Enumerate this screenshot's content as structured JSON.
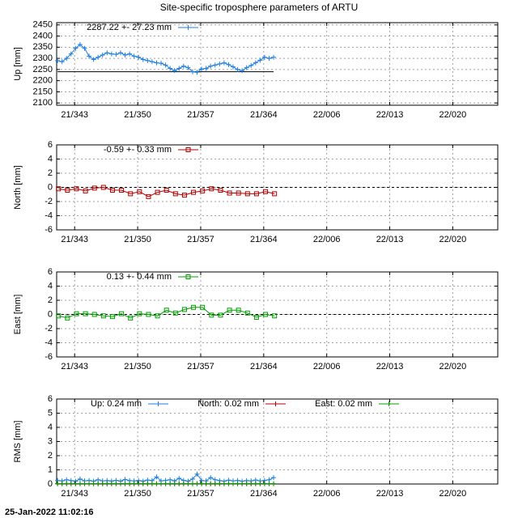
{
  "title": "Site-specific troposphere parameters of ARTU",
  "footer": "25-Jan-2022 11:02:16",
  "chart_data": [
    {
      "type": "line",
      "ylabel": "Up [mm]",
      "x": [
        341.1,
        341.6,
        342.1,
        342.6,
        343.1,
        343.6,
        344.1,
        344.6,
        345.1,
        345.6,
        346.1,
        346.6,
        347.1,
        347.6,
        348.1,
        348.6,
        349.1,
        349.6,
        350.1,
        350.6,
        351.1,
        351.6,
        352.1,
        352.6,
        353.1,
        353.6,
        354.1,
        354.6,
        355.1,
        355.6,
        356.1,
        356.6,
        357.1,
        357.6,
        358.1,
        358.6,
        359.1,
        359.6,
        360.1,
        360.6,
        361.1,
        361.6,
        362.1,
        362.6,
        363.1,
        363.6,
        364.1,
        364.6,
        365.1
      ],
      "series": [
        {
          "name": "2287.22 +-  27.23 mm",
          "color": "#1e7fe0",
          "marker": "plus",
          "values": [
            2290,
            2285,
            2300,
            2320,
            2345,
            2362,
            2345,
            2310,
            2295,
            2305,
            2315,
            2325,
            2320,
            2318,
            2325,
            2315,
            2320,
            2310,
            2305,
            2295,
            2290,
            2285,
            2280,
            2278,
            2270,
            2255,
            2245,
            2255,
            2265,
            2258,
            2240,
            2238,
            2252,
            2255,
            2265,
            2270,
            2275,
            2280,
            2272,
            2262,
            2250,
            2245,
            2258,
            2268,
            2280,
            2292,
            2305,
            2300,
            2305
          ]
        }
      ],
      "reference_line": 2240,
      "xlim": [
        341,
        390
      ],
      "xticks": [
        {
          "value": 343,
          "label": "21/343"
        },
        {
          "value": 350,
          "label": "21/350"
        },
        {
          "value": 357,
          "label": "21/357"
        },
        {
          "value": 364,
          "label": "21/364"
        },
        {
          "value": 371,
          "label": "22/006"
        },
        {
          "value": 378,
          "label": "22/013"
        },
        {
          "value": 385,
          "label": "22/020"
        }
      ],
      "ylim": [
        2090,
        2460
      ],
      "yticks": [
        2100,
        2150,
        2200,
        2250,
        2300,
        2350,
        2400,
        2450
      ],
      "grid": true
    },
    {
      "type": "line",
      "ylabel": "North [mm]",
      "x": [
        341.2,
        342.2,
        343.2,
        344.2,
        345.2,
        346.2,
        347.2,
        348.2,
        349.2,
        350.2,
        351.2,
        352.2,
        353.2,
        354.2,
        355.2,
        356.2,
        357.2,
        358.2,
        359.2,
        360.2,
        361.2,
        362.2,
        363.2,
        364.2,
        365.2
      ],
      "series": [
        {
          "name": "-0.59 +-   0.33 mm",
          "color": "#b00000",
          "marker": "square",
          "values": [
            -0.2,
            -0.4,
            -0.2,
            -0.5,
            -0.1,
            0.0,
            -0.4,
            -0.4,
            -0.9,
            -0.6,
            -1.3,
            -0.7,
            -0.4,
            -0.9,
            -1.1,
            -0.7,
            -0.5,
            -0.2,
            -0.4,
            -0.8,
            -0.8,
            -0.9,
            -0.9,
            -0.6,
            -0.9
          ]
        }
      ],
      "reference_line": 0,
      "xlim": [
        341,
        390
      ],
      "xticks": [
        {
          "value": 343,
          "label": "21/343"
        },
        {
          "value": 350,
          "label": "21/350"
        },
        {
          "value": 357,
          "label": "21/357"
        },
        {
          "value": 364,
          "label": "21/364"
        },
        {
          "value": 371,
          "label": "22/006"
        },
        {
          "value": 378,
          "label": "22/013"
        },
        {
          "value": 385,
          "label": "22/020"
        }
      ],
      "ylim": [
        -6,
        6
      ],
      "yticks": [
        -6,
        -4,
        -2,
        0,
        2,
        4,
        6
      ],
      "grid": true
    },
    {
      "type": "line",
      "ylabel": "East [mm]",
      "x": [
        341.2,
        342.2,
        343.2,
        344.2,
        345.2,
        346.2,
        347.2,
        348.2,
        349.2,
        350.2,
        351.2,
        352.2,
        353.2,
        354.2,
        355.2,
        356.2,
        357.2,
        358.2,
        359.2,
        360.2,
        361.2,
        362.2,
        363.2,
        364.2,
        365.2
      ],
      "series": [
        {
          "name": "0.13 +-   0.44 mm",
          "color": "#00a000",
          "marker": "square",
          "values": [
            -0.2,
            -0.5,
            0.1,
            0.1,
            0.0,
            -0.2,
            -0.3,
            0.1,
            -0.5,
            0.1,
            0.0,
            -0.2,
            0.6,
            0.2,
            0.7,
            1.0,
            1.0,
            -0.1,
            -0.1,
            0.6,
            0.6,
            0.2,
            -0.4,
            0.0,
            -0.2
          ]
        }
      ],
      "reference_line": 0,
      "xlim": [
        341,
        390
      ],
      "xticks": [
        {
          "value": 343,
          "label": "21/343"
        },
        {
          "value": 350,
          "label": "21/350"
        },
        {
          "value": 357,
          "label": "21/357"
        },
        {
          "value": 364,
          "label": "21/364"
        },
        {
          "value": 371,
          "label": "22/006"
        },
        {
          "value": 378,
          "label": "22/013"
        },
        {
          "value": 385,
          "label": "22/020"
        }
      ],
      "ylim": [
        -6,
        6
      ],
      "yticks": [
        -6,
        -4,
        -2,
        0,
        2,
        4,
        6
      ],
      "grid": true
    },
    {
      "type": "line",
      "ylabel": "RMS [mm]",
      "x": [
        341.1,
        341.6,
        342.1,
        342.6,
        343.1,
        343.6,
        344.1,
        344.6,
        345.1,
        345.6,
        346.1,
        346.6,
        347.1,
        347.6,
        348.1,
        348.6,
        349.1,
        349.6,
        350.1,
        350.6,
        351.1,
        351.6,
        352.1,
        352.6,
        353.1,
        353.6,
        354.1,
        354.6,
        355.1,
        355.6,
        356.1,
        356.6,
        357.1,
        357.6,
        358.1,
        358.6,
        359.1,
        359.6,
        360.1,
        360.6,
        361.1,
        361.6,
        362.1,
        362.6,
        363.1,
        363.6,
        364.1,
        364.6,
        365.1
      ],
      "series": [
        {
          "name": "Up:    0.24 mm",
          "color": "#1e7fe0",
          "marker": "plus",
          "values": [
            0.25,
            0.22,
            0.3,
            0.24,
            0.2,
            0.35,
            0.22,
            0.25,
            0.2,
            0.3,
            0.22,
            0.24,
            0.21,
            0.26,
            0.2,
            0.32,
            0.24,
            0.22,
            0.25,
            0.2,
            0.28,
            0.24,
            0.5,
            0.22,
            0.25,
            0.3,
            0.22,
            0.4,
            0.26,
            0.2,
            0.35,
            0.7,
            0.25,
            0.22,
            0.45,
            0.3,
            0.24,
            0.2,
            0.27,
            0.22,
            0.25,
            0.2,
            0.24,
            0.22,
            0.28,
            0.22,
            0.25,
            0.3,
            0.45
          ]
        },
        {
          "name": "North:  0.02 mm",
          "color": "#b00000",
          "marker": "plus",
          "values": [
            0.02,
            0.02,
            0.02,
            0.02,
            0.02,
            0.02,
            0.02,
            0.02,
            0.02,
            0.02,
            0.02,
            0.02,
            0.02,
            0.02,
            0.02,
            0.02,
            0.02,
            0.02,
            0.02,
            0.02,
            0.02,
            0.02,
            0.02,
            0.02,
            0.02,
            0.02,
            0.02,
            0.02,
            0.02,
            0.02,
            0.02,
            0.02,
            0.02,
            0.02,
            0.02,
            0.02,
            0.02,
            0.02,
            0.02,
            0.02,
            0.02,
            0.02,
            0.02,
            0.02,
            0.02,
            0.02,
            0.02,
            0.02,
            0.02
          ]
        },
        {
          "name": "East:  0.02 mm",
          "color": "#00a000",
          "marker": "plus",
          "values": [
            0.02,
            0.02,
            0.02,
            0.02,
            0.02,
            0.02,
            0.02,
            0.02,
            0.02,
            0.02,
            0.02,
            0.02,
            0.02,
            0.02,
            0.02,
            0.02,
            0.02,
            0.02,
            0.02,
            0.02,
            0.02,
            0.02,
            0.02,
            0.02,
            0.02,
            0.02,
            0.02,
            0.02,
            0.02,
            0.02,
            0.02,
            0.02,
            0.02,
            0.02,
            0.02,
            0.02,
            0.02,
            0.02,
            0.02,
            0.02,
            0.02,
            0.02,
            0.02,
            0.02,
            0.02,
            0.02,
            0.02,
            0.02,
            0.02
          ]
        }
      ],
      "xlim": [
        341,
        390
      ],
      "xticks": [
        {
          "value": 343,
          "label": "21/343"
        },
        {
          "value": 350,
          "label": "21/350"
        },
        {
          "value": 357,
          "label": "21/357"
        },
        {
          "value": 364,
          "label": "21/364"
        },
        {
          "value": 371,
          "label": "22/006"
        },
        {
          "value": 378,
          "label": "22/013"
        },
        {
          "value": 385,
          "label": "22/020"
        }
      ],
      "ylim": [
        0,
        6
      ],
      "yticks": [
        0,
        1,
        2,
        3,
        4,
        5,
        6
      ],
      "grid": true
    }
  ]
}
